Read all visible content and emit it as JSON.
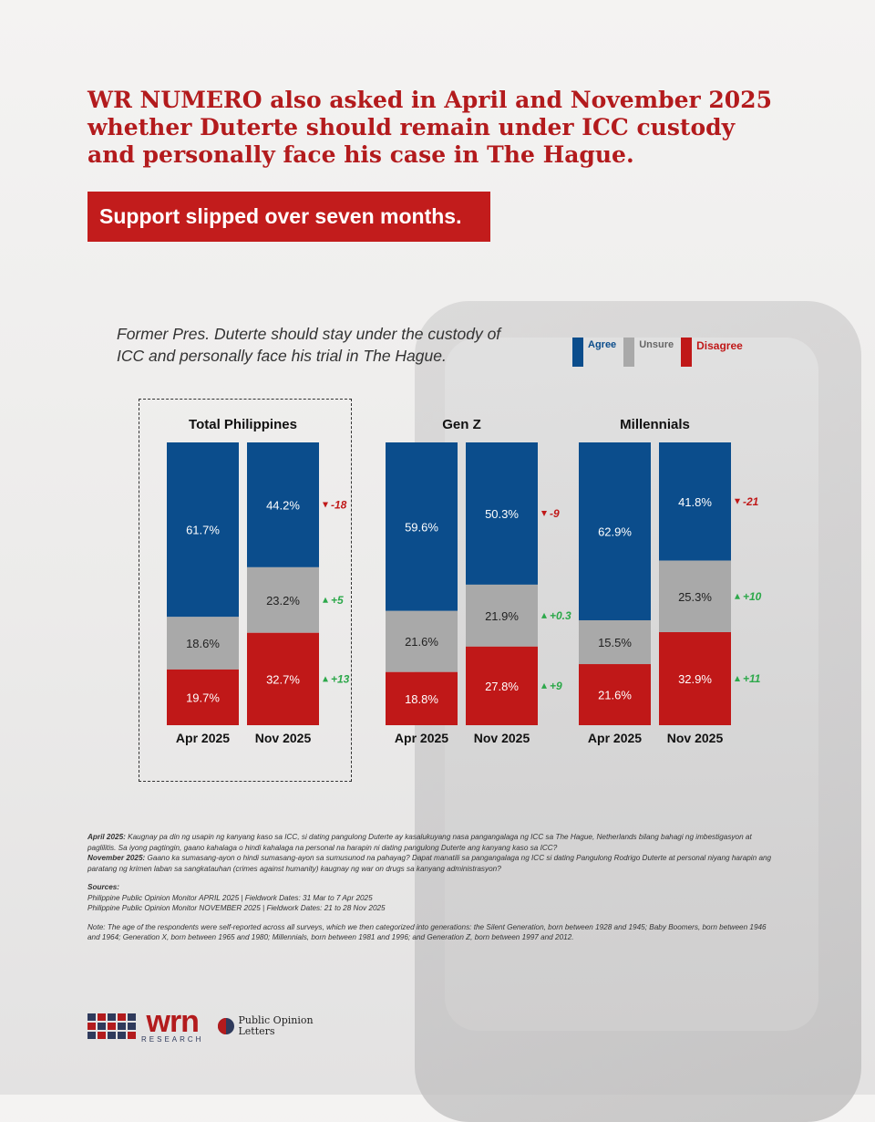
{
  "headline": "WR NUMERO also asked in April and November 2025 whether Duterte should remain under ICC custody and personally face his case in The Hague.",
  "banner": "Support slipped over seven months.",
  "question": "Former Pres. Duterte should stay under the custody of ICC and personally face his trial in The Hague.",
  "legend": [
    {
      "label": "Agree",
      "color": "#0b4d8c"
    },
    {
      "label": "Unsure",
      "color": "#a9a9a9"
    },
    {
      "label": "Disagree",
      "color": "#c01818"
    }
  ],
  "colors": {
    "agree": "#0b4d8c",
    "unsure": "#a9a9a9",
    "disagree": "#c01818",
    "up": "#2ca84a",
    "down": "#c01818"
  },
  "chart_data": {
    "type": "bar",
    "stacked": true,
    "title": "Former Pres. Duterte should stay under the custody of ICC and personally face his trial in The Hague.",
    "series_names": [
      "Agree",
      "Unsure",
      "Disagree"
    ],
    "panels": [
      {
        "name": "Total Philippines",
        "bars": [
          {
            "label": "Apr 2025",
            "values": [
              61.7,
              18.6,
              19.7
            ],
            "texts": [
              "61.7%",
              "18.6%",
              "19.7%"
            ]
          },
          {
            "label": "Nov 2025",
            "values": [
              44.2,
              23.2,
              32.7
            ],
            "texts": [
              "44.2%",
              "23.2%",
              "32.7%"
            ]
          }
        ],
        "changes": [
          "-18",
          "+5",
          "+13"
        ]
      },
      {
        "name": "Gen Z",
        "bars": [
          {
            "label": "Apr 2025",
            "values": [
              59.6,
              21.6,
              18.8
            ],
            "texts": [
              "59.6%",
              "21.6%",
              "18.8%"
            ]
          },
          {
            "label": "Nov 2025",
            "values": [
              50.3,
              21.9,
              27.8
            ],
            "texts": [
              "50.3%",
              "21.9%",
              "27.8%"
            ]
          }
        ],
        "changes": [
          "-9",
          "+0.3",
          "+9"
        ]
      },
      {
        "name": "Millennials",
        "bars": [
          {
            "label": "Apr 2025",
            "values": [
              62.9,
              15.5,
              21.6
            ],
            "texts": [
              "62.9%",
              "15.5%",
              "21.6%"
            ]
          },
          {
            "label": "Nov 2025",
            "values": [
              41.8,
              25.3,
              32.9
            ],
            "texts": [
              "41.8%",
              "25.3%",
              "32.9%"
            ]
          }
        ],
        "changes": [
          "-21",
          "+10",
          "+11"
        ]
      }
    ]
  },
  "notes": {
    "april_label": "April 2025:",
    "april_text": "Kaugnay pa din ng usapin ng kanyang kaso sa ICC, si dating pangulong Duterte ay kasalukuyang nasa pangangalaga ng ICC sa The Hague, Netherlands bilang bahagi ng imbestigasyon at paglilitis. Sa iyong pagtingin, gaano kahalaga o hindi kahalaga na personal na harapin ni dating pangulong Duterte ang kanyang kaso sa ICC?",
    "november_label": "November 2025:",
    "november_text": "Gaano ka sumasang-ayon o hindi sumasang-ayon sa sumusunod na pahayag? Dapat manatili sa pangangalaga ng ICC si dating Pangulong Rodrigo Duterte at personal niyang harapin ang paratang ng krimen laban sa sangkatauhan (crimes against humanity) kaugnay ng war on drugs sa kanyang administrasyon?",
    "sources_label": "Sources:",
    "source1": "Philippine Public Opinion Monitor APRIL 2025 | Fieldwork Dates: 31 Mar to 7 Apr 2025",
    "source2": "Philippine Public Opinion Monitor NOVEMBER 2025 | Fieldwork Dates: 21 to 28 Nov 2025",
    "note": "Note: The age of the respondents were self-reported across all surveys, which we then categorized into generations: the Silent Generation, born between 1928 and 1945; Baby Boomers, born between 1946 and 1964; Generation X, born between 1965 and 1980; Millennials, born between 1981 and 1996; and Generation Z, born between 1997 and 2012."
  },
  "logos": {
    "wrn": "wrn",
    "wrn_sub": "RESEARCH",
    "pol_line1": "Public Opinion",
    "pol_line2": "Letters"
  }
}
